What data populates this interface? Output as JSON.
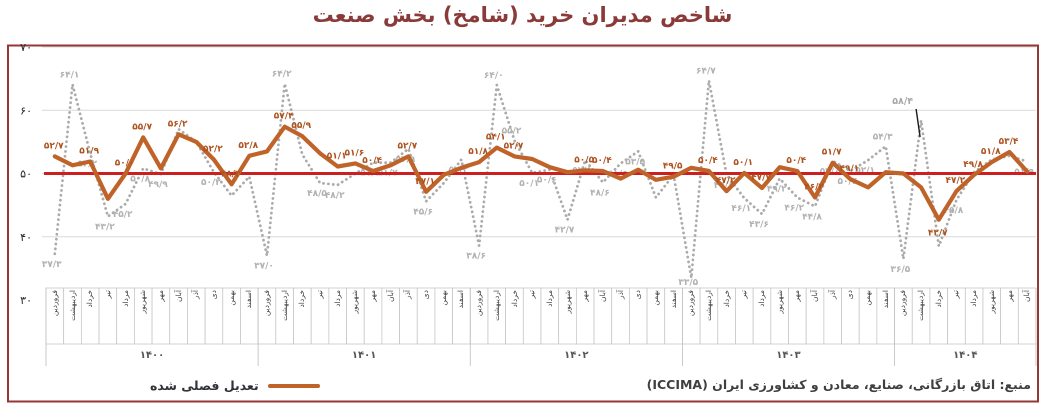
{
  "title": "شاخص مدیران خرید (شامخ) بخش صنعت",
  "legend": {
    "seasonally_adjusted_label": "تعدیل فصلی شده"
  },
  "source": "منبع: اتاق بازرگانی، صنایع، معادن و کشاورزی ایران (ICCIMA)",
  "colors": {
    "adjusted_orange": "#bf6329",
    "raw_gray": "#ababab",
    "reference_red": "#cc2020",
    "frame_maroon": "#953735",
    "title_maroon": "#8b3a3a",
    "gridline_gray": "#d9d9d9",
    "axis_box_gray": "#c4c4c4"
  },
  "chart_data": {
    "type": "line",
    "title": "شاخص مدیران خرید (شامخ) بخش صنعت",
    "xlabel": "",
    "ylabel": "",
    "ylim": [
      30,
      70
    ],
    "grid": true,
    "reference_line": 50,
    "legend_position": "bottom-left",
    "y_ticks": [
      {
        "value": 30,
        "label": "۳۰"
      },
      {
        "value": 40,
        "label": "۴۰"
      },
      {
        "value": 50,
        "label": "۵۰"
      },
      {
        "value": 60,
        "label": "۶۰"
      },
      {
        "value": 70,
        "label": "۷۰"
      }
    ],
    "years": [
      {
        "label": "۱۴۰۰",
        "months": [
          "فروردین",
          "اردیبهشت",
          "خرداد",
          "تیر",
          "مرداد",
          "شهریور",
          "مهر",
          "آبان",
          "آذر",
          "دی",
          "بهمن",
          "اسفند"
        ]
      },
      {
        "label": "۱۴۰۱",
        "months": [
          "فروردین",
          "اردیبهشت",
          "خرداد",
          "تیر",
          "مرداد",
          "شهریور",
          "مهر",
          "آبان",
          "آذر",
          "دی",
          "بهمن",
          "اسفند"
        ]
      },
      {
        "label": "۱۴۰۲",
        "months": [
          "فروردین",
          "اردیبهشت",
          "خرداد",
          "تیر",
          "مرداد",
          "شهریور",
          "مهر",
          "آبان",
          "آذر",
          "دی",
          "بهمن",
          "اسفند"
        ]
      },
      {
        "label": "۱۴۰۳",
        "months": [
          "فروردین",
          "اردیبهشت",
          "خرداد",
          "تیر",
          "مرداد",
          "شهریور",
          "مهر",
          "آبان",
          "آذر",
          "دی",
          "بهمن",
          "اسفند"
        ]
      },
      {
        "label": "۱۴۰۴",
        "months": [
          "فروردین",
          "اردیبهشت",
          "خرداد",
          "تیر",
          "مرداد",
          "شهریور",
          "مهر",
          "آبان"
        ]
      }
    ],
    "series": [
      {
        "id": "raw",
        "name": "",
        "style": "dotted",
        "color": "#ababab",
        "values": [
          37.3,
          64.1,
          53.2,
          43.2,
          45.2,
          50.8,
          49.9,
          57.0,
          55.0,
          50.2,
          46.5,
          49.5,
          37.0,
          64.2,
          53.0,
          48.5,
          48.2,
          50.0,
          51.7,
          51.7,
          53.9,
          45.6,
          48.5,
          52.2,
          38.6,
          64.0,
          55.2,
          50.1,
          50.6,
          42.7,
          52.1,
          48.6,
          51.6,
          53.5,
          46.2,
          49.8,
          33.5,
          64.7,
          49.8,
          46.1,
          43.6,
          49.2,
          46.2,
          44.8,
          52.0,
          50.4,
          52.1,
          54.3,
          36.5,
          58.4,
          38.5,
          45.8,
          50.2,
          52.2,
          52.8,
          51.9
        ],
        "point_labels": [
          "۳۷/۳",
          "۶۴/۱",
          "۵۳/۲",
          "۴۳/۲",
          "۴۵/۲",
          "۵۰/۸",
          "۴۹/۹",
          "",
          "",
          "۵۰/۲",
          "",
          "",
          "۳۷/۰",
          "۶۴/۲",
          "",
          "۴۸/۵",
          "۴۸/۲",
          "",
          "۵۱/۷",
          "۵۱/۷",
          "۵۳/۹",
          "۴۵/۶",
          "",
          "۵۲/۲",
          "۳۸/۶",
          "۶۴/۰",
          "۵۵/۲",
          "۵۰/۱",
          "۵۰/۶",
          "۴۲/۷",
          "۵۲/۱",
          "۴۸/۶",
          "۵۱/۶",
          "۵۳/۵",
          "",
          "",
          "۳۳/۵",
          "۶۴/۷",
          "۴۹/۸",
          "۴۶/۱",
          "۴۳/۶",
          "۴۹/۲",
          "۴۶/۲",
          "۴۴/۸",
          "۵۲/۰",
          "۵۰/۴",
          "۵۲/۱",
          "۵۴/۳",
          "۳۶/۵",
          "",
          "",
          "۴۵/۸",
          "",
          "",
          "",
          "۵۱/۹"
        ]
      },
      {
        "id": "seasonally_adjusted",
        "name": "تعدیل فصلی شده",
        "style": "solid",
        "color": "#bf6329",
        "values": [
          52.7,
          51.3,
          51.9,
          46.0,
          50.0,
          55.7,
          50.8,
          56.2,
          55.0,
          52.2,
          48.3,
          52.8,
          53.5,
          57.4,
          55.9,
          53.2,
          51.1,
          51.6,
          50.4,
          51.3,
          52.7,
          47.1,
          49.8,
          50.9,
          51.8,
          54.1,
          52.7,
          52.3,
          51.0,
          50.2,
          50.5,
          50.4,
          49.2,
          50.6,
          49.0,
          49.5,
          50.9,
          50.4,
          47.2,
          50.1,
          47.7,
          51.0,
          50.4,
          46.2,
          51.7,
          49.1,
          47.8,
          50.2,
          50.0,
          47.8,
          42.7,
          47.2,
          49.8,
          51.8,
          53.4,
          50.3
        ],
        "point_labels": [
          "۵۲/۷",
          "",
          "۵۱/۹",
          "",
          "۵۰/۰",
          "۵۵/۷",
          "",
          "۵۶/۲",
          "",
          "۵۲/۲",
          "۴۸/۳",
          "۵۲/۸",
          "",
          "۵۷/۴",
          "۵۵/۹",
          "",
          "۵۱/۱",
          "۵۱/۶",
          "۵۰/۴",
          "",
          "۵۲/۷",
          "۴۷/۱",
          "",
          "",
          "۵۱/۸",
          "۵۴/۱",
          "۵۲/۷",
          "",
          "",
          "",
          "۵۰/۵",
          "۵۰/۴",
          "",
          "",
          "",
          "۴۹/۵",
          "",
          "۵۰/۴",
          "۴۷/۲",
          "۵۰/۱",
          "۴۷/۷",
          "",
          "۵۰/۴",
          "۴۶/۲",
          "۵۱/۷",
          "۴۹/۱",
          "",
          "",
          "",
          "",
          "۴۲/۷",
          "۴۷/۲",
          "۴۹/۸",
          "۵۱/۸",
          "۵۳/۴",
          ""
        ]
      }
    ],
    "callout": {
      "series": "raw",
      "index": 49,
      "text": "۵۸/۴"
    }
  }
}
